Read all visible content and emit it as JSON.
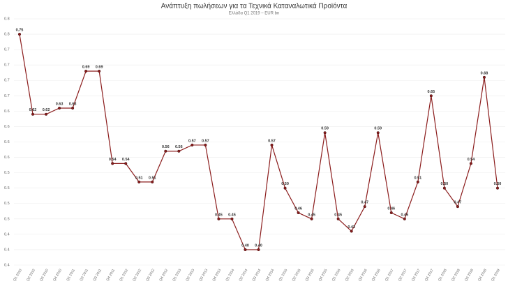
{
  "chart_data": {
    "type": "line",
    "title": "Ανάπτυξη πωλήσεων για τα Τεχνικά Καταναλωτικά Προϊόντα",
    "subtitle": "Ελλάδα Q1 2019 – EUR bn",
    "categories": [
      "Q1 2010",
      "Q2 2010",
      "Q3 2010",
      "Q4 2010",
      "Q1 2011",
      "Q2 2011",
      "Q3 2011",
      "Q4 2011",
      "Q1 2012",
      "Q2 2012",
      "Q3 2012",
      "Q4 2012",
      "Q1 2013",
      "Q2 2013",
      "Q3 2013",
      "Q4 2013",
      "Q1 2014",
      "Q2 2014",
      "Q3 2014",
      "Q4 2014",
      "Q1 2015",
      "Q2 2015",
      "Q3 2015",
      "Q4 2015",
      "Q1 2016",
      "Q2 2016",
      "Q3 2016",
      "Q4 2016",
      "Q1 2017",
      "Q2 2017",
      "Q3 2017",
      "Q4 2017",
      "Q1 2018",
      "Q2 2018",
      "Q3 2018",
      "Q4 2018",
      "Q1 2019"
    ],
    "series": [
      {
        "name": "EUR bn",
        "color": "#8b1c1c",
        "values": [
          0.75,
          0.62,
          0.62,
          0.63,
          0.63,
          0.69,
          0.69,
          0.54,
          0.54,
          0.51,
          0.51,
          0.56,
          0.56,
          0.57,
          0.57,
          0.45,
          0.45,
          0.4,
          0.4,
          0.57,
          0.5,
          0.46,
          0.45,
          0.59,
          0.45,
          0.43,
          0.47,
          0.59,
          0.46,
          0.45,
          0.51,
          0.65,
          0.5,
          0.47,
          0.54,
          0.68,
          0.5
        ],
        "value_labels": [
          "0.75",
          "0.62",
          "0.62",
          "0.63",
          "0.63",
          "0.69",
          "0.69",
          "0.54",
          "0.54",
          "0.51",
          "0.51",
          "0.56",
          "0.56",
          "0.57",
          "0.57",
          "0.45",
          "0.45",
          "0.40",
          "0.40",
          "0.57",
          "0.50",
          "0.46",
          "0.45",
          "0.59",
          "0.45",
          "0.43",
          "0.47",
          "0.59",
          "0.46",
          "0.45",
          "0.51",
          "0.65",
          "0.50",
          "0.47",
          "0.54",
          "0.68",
          "0.50"
        ]
      }
    ],
    "ylim": [
      0.375,
      0.775
    ],
    "yticks": [
      {
        "value": 0.375,
        "label": "0.4"
      },
      {
        "value": 0.4,
        "label": "0.4"
      },
      {
        "value": 0.425,
        "label": "0.4"
      },
      {
        "value": 0.45,
        "label": "0.5"
      },
      {
        "value": 0.475,
        "label": "0.5"
      },
      {
        "value": 0.5,
        "label": "0.5"
      },
      {
        "value": 0.525,
        "label": "0.5"
      },
      {
        "value": 0.55,
        "label": "0.6"
      },
      {
        "value": 0.575,
        "label": "0.6"
      },
      {
        "value": 0.6,
        "label": "0.6"
      },
      {
        "value": 0.625,
        "label": "0.6"
      },
      {
        "value": 0.65,
        "label": "0.7"
      },
      {
        "value": 0.675,
        "label": "0.7"
      },
      {
        "value": 0.7,
        "label": "0.7"
      },
      {
        "value": 0.725,
        "label": "0.7"
      },
      {
        "value": 0.75,
        "label": "0.8"
      },
      {
        "value": 0.775,
        "label": "0.8"
      }
    ],
    "grid": true
  }
}
